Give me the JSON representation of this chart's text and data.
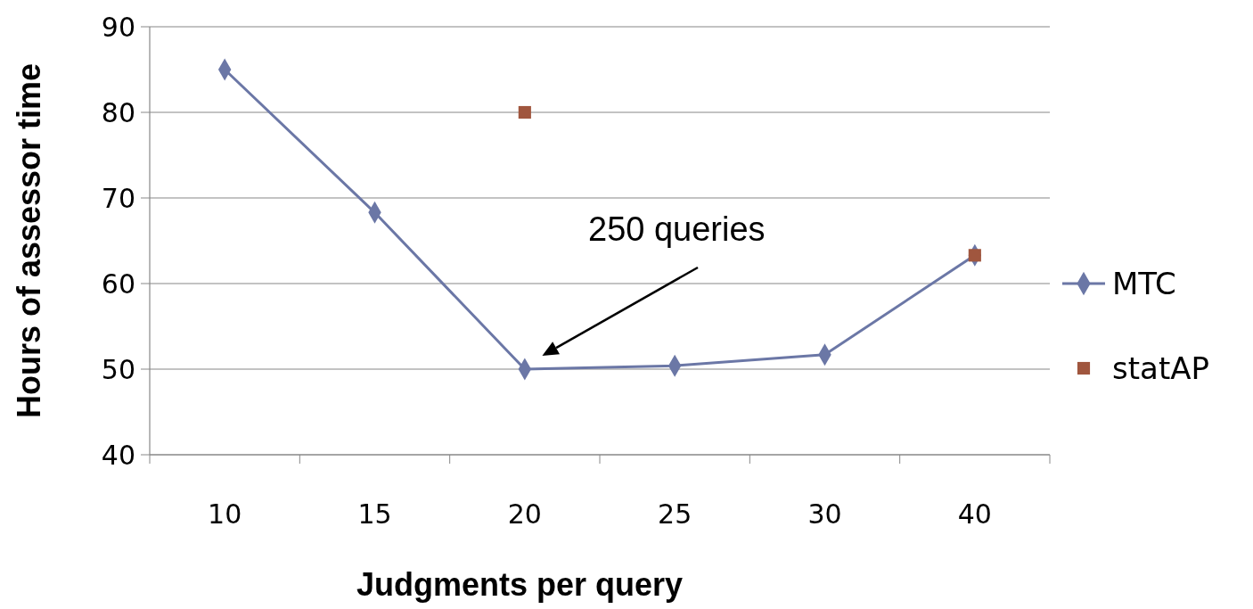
{
  "chart_data": {
    "type": "line",
    "xlabel": "Judgments per query",
    "ylabel": "Hours of assessor time",
    "categories": [
      "10",
      "15",
      "20",
      "25",
      "30",
      "40"
    ],
    "series": [
      {
        "name": "MTC",
        "color": "#6b77a6",
        "marker": "diamond",
        "values": [
          85,
          68.3,
          50,
          50.4,
          51.7,
          63.3
        ]
      },
      {
        "name": "statAP",
        "type": "scatter",
        "color": "#a0563e",
        "marker": "square",
        "values": [
          null,
          null,
          80,
          null,
          null,
          63.3
        ]
      }
    ],
    "ylim": [
      40,
      90
    ],
    "yticks": [
      40,
      50,
      60,
      70,
      80,
      90
    ],
    "grid": "y",
    "legend": "right",
    "line_style": "solid",
    "annotations": [
      "250 queries"
    ]
  }
}
